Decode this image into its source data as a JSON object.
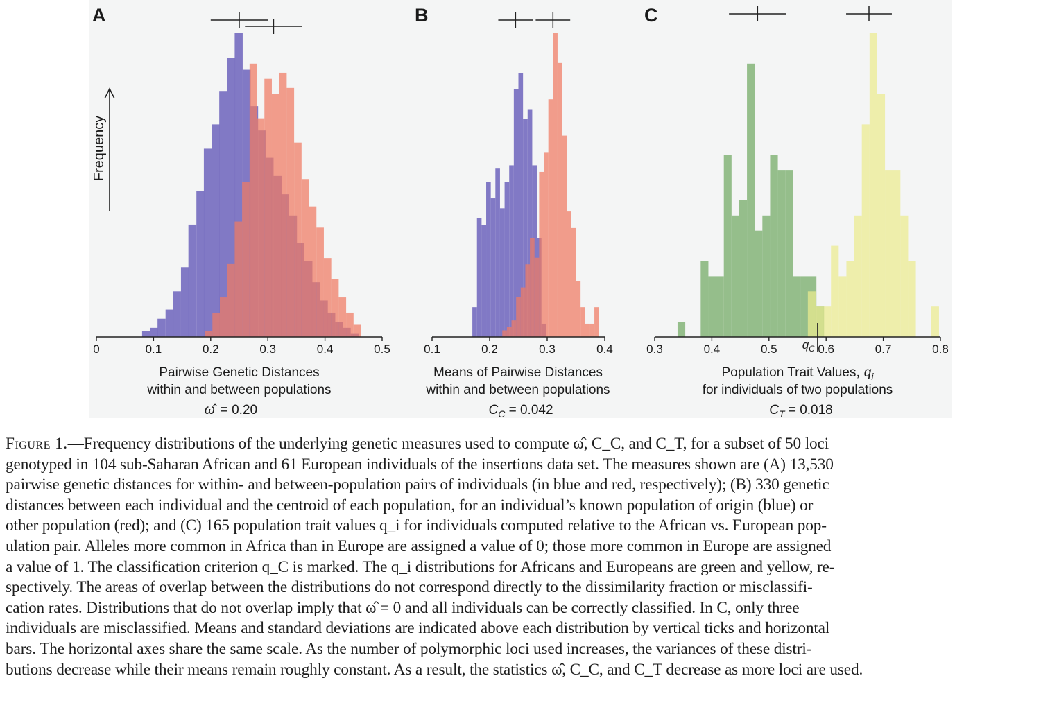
{
  "figure": {
    "y_axis_label": "Frequency",
    "panels": [
      {
        "letter": "A",
        "xlabel_line1": "Pairwise Genetic Distances",
        "xlabel_line2": "within and between populations",
        "stat_symbol": "ω̂",
        "stat_value": "= 0.20",
        "tick_labels": [
          "0",
          "0.1",
          "0.2",
          "0.3",
          "0.4",
          "0.5"
        ]
      },
      {
        "letter": "B",
        "xlabel_line1": "Means of Pairwise Distances",
        "xlabel_line2": "within and between populations",
        "stat_symbol": "C",
        "stat_sub": "C",
        "stat_value": " = 0.042",
        "tick_labels": [
          "0.1",
          "0.2",
          "0.3",
          "0.4"
        ]
      },
      {
        "letter": "C",
        "xlabel_line1": "Population Trait Values,",
        "xlabel_var": "q",
        "xlabel_var_sub": "i",
        "xlabel_line2": "for individuals of two populations",
        "stat_symbol": "C",
        "stat_sub": "T",
        "stat_value": " = 0.018",
        "tick_labels": [
          "0.3",
          "0.4",
          "0.5",
          "0.6",
          "0.7",
          "0.8"
        ],
        "criterion_label": "q",
        "criterion_sub": "C"
      }
    ]
  },
  "chart_data": [
    {
      "type": "bar",
      "panel": "A",
      "xlabel": "Pairwise Genetic Distances within and between populations",
      "ylabel": "Frequency",
      "xlim": [
        0,
        0.5
      ],
      "series": [
        {
          "name": "within",
          "color": "#7a72c2",
          "bins": [
            0.08,
            0.094,
            0.107,
            0.121,
            0.134,
            0.148,
            0.161,
            0.175,
            0.188,
            0.202,
            0.215,
            0.229,
            0.242,
            0.256,
            0.269,
            0.283,
            0.296,
            0.31,
            0.323,
            0.337,
            0.35,
            0.364,
            0.377,
            0.391,
            0.404,
            0.418,
            0.431,
            0.445
          ],
          "values": [
            2,
            3,
            6,
            9,
            15,
            23,
            37,
            48,
            62,
            70,
            81,
            92,
            100,
            88,
            76,
            68,
            59,
            53,
            47,
            40,
            31,
            25,
            18,
            12,
            8,
            5,
            3,
            1
          ],
          "mean": 0.25,
          "sd": 0.05
        },
        {
          "name": "between",
          "color": "#f07a63",
          "bins": [
            0.19,
            0.203,
            0.216,
            0.229,
            0.242,
            0.255,
            0.268,
            0.281,
            0.294,
            0.307,
            0.32,
            0.333,
            0.346,
            0.359,
            0.372,
            0.385,
            0.398,
            0.411,
            0.424,
            0.437,
            0.45
          ],
          "values": [
            2,
            8,
            13,
            24,
            38,
            51,
            90,
            72,
            85,
            80,
            87,
            82,
            64,
            52,
            43,
            36,
            26,
            19,
            13,
            8,
            4
          ],
          "mean": 0.31,
          "sd": 0.05
        }
      ]
    },
    {
      "type": "bar",
      "panel": "B",
      "xlabel": "Means of Pairwise Distances within and between populations",
      "xlim": [
        0.1,
        0.4
      ],
      "series": [
        {
          "name": "within",
          "color": "#7a72c2",
          "bins": [
            0.17,
            0.178,
            0.186,
            0.194,
            0.202,
            0.21,
            0.218,
            0.226,
            0.234,
            0.242,
            0.25,
            0.258,
            0.266,
            0.274,
            0.282,
            0.29
          ],
          "values": [
            9,
            36,
            34,
            47,
            42,
            51,
            39,
            47,
            52,
            75,
            80,
            66,
            69,
            52,
            30,
            4
          ],
          "mean": 0.245,
          "sd": 0.03
        },
        {
          "name": "between",
          "color": "#f07a63",
          "bins": [
            0.222,
            0.23,
            0.238,
            0.246,
            0.254,
            0.262,
            0.27,
            0.278,
            0.286,
            0.294,
            0.302,
            0.31,
            0.318,
            0.326,
            0.334,
            0.342,
            0.35,
            0.358,
            0.366,
            0.374,
            0.382
          ],
          "values": [
            2,
            3,
            5,
            12,
            15,
            22,
            30,
            24,
            50,
            56,
            72,
            92,
            83,
            61,
            38,
            33,
            17,
            9,
            4,
            4,
            9
          ],
          "mean": 0.31,
          "sd": 0.03
        }
      ]
    },
    {
      "type": "bar",
      "panel": "C",
      "xlabel": "Population Trait Values, qi for individuals of two populations",
      "xlim": [
        0.3,
        0.8
      ],
      "series": [
        {
          "name": "Africans",
          "color": "#8fba85",
          "bins": [
            0.34,
            0.3535,
            0.367,
            0.3805,
            0.394,
            0.4075,
            0.421,
            0.4345,
            0.448,
            0.4615,
            0.475,
            0.4885,
            0.502,
            0.5155,
            0.529,
            0.5425,
            0.556,
            0.5695,
            0.583
          ],
          "values": [
            1,
            0,
            0,
            5,
            4,
            4,
            12,
            8,
            9,
            18,
            7,
            8,
            12,
            11,
            11,
            4,
            4,
            4,
            2
          ],
          "mean": 0.48,
          "sd": 0.05
        },
        {
          "name": "Europeans",
          "color": "#ecec8f",
          "bins": [
            0.568,
            0.5815,
            0.595,
            0.6085,
            0.622,
            0.6355,
            0.649,
            0.6625,
            0.676,
            0.6895,
            0.703,
            0.7165,
            0.73,
            0.7435,
            0.757,
            0.7705,
            0.784
          ],
          "values": [
            3,
            2,
            2,
            6,
            4,
            5,
            8,
            14,
            20,
            16,
            11,
            11,
            8,
            5,
            0,
            0,
            2
          ],
          "mean": 0.675,
          "sd": 0.04
        }
      ],
      "criterion": 0.585
    }
  ],
  "caption": {
    "figure_label": "Figure 1.",
    "lines": [
      "—Frequency distributions of the underlying genetic measures used to compute ω̂, C_C, and C_T, for a subset of 50 loci",
      "genotyped in 104 sub-Saharan African and 61 European individuals of the insertions data set. The measures shown are (A) 13,530",
      "pairwise genetic distances for within- and between-population pairs of individuals (in blue and red, respectively); (B) 330 genetic",
      "distances between each individual and the centroid of each population, for an individual’s known population of origin (blue) or",
      "other population (red); and (C) 165 population trait values q_i for individuals computed relative to the African vs. European pop-",
      "ulation pair. Alleles more common in Africa than in Europe are assigned a value of 0; those more common in Europe are assigned",
      "a value of 1. The classification criterion q_C is marked. The q_i distributions for Africans and Europeans are green and yellow, re-",
      "spectively. The areas of overlap between the distributions do not correspond directly to the dissimilarity fraction or misclassifi-",
      "cation rates. Distributions that do not overlap imply that ω̂ = 0 and all individuals can be correctly classified. In C, only three",
      "individuals are misclassified. Means and standard deviations are indicated above each distribution by vertical ticks and horizontal",
      "bars. The horizontal axes share the same scale. As the number of polymorphic loci used increases, the variances of these distri-",
      "butions decrease while their means remain roughly constant. As a result, the statistics ω̂, C_C, and C_T decrease as more loci are used."
    ]
  }
}
